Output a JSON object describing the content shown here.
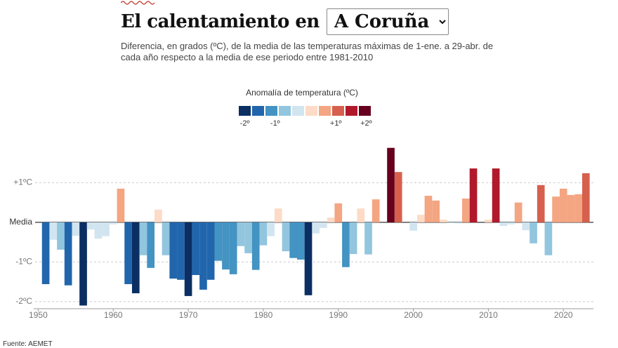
{
  "chart_data": {
    "type": "bar",
    "title": "El calentamiento en",
    "location": "A Coruña",
    "subtitle": "Diferencia, en grados (ºC), de la media de las temperaturas máximas de 1-ene. a 29-abr. de cada año respecto a la media de ese periodo entre 1981-2010",
    "source": "Fuente: AEMET",
    "legend": {
      "title": "Anomalía de temperatura (ºC)",
      "colors": [
        "#0b2f63",
        "#2166ac",
        "#4393c3",
        "#92c5de",
        "#d1e5f0",
        "#fddbc7",
        "#f4a582",
        "#d6604d",
        "#b2182b",
        "#67001f"
      ],
      "clim": [
        -2.2,
        2.2
      ],
      "ticks": [
        {
          "value": -2,
          "label": "-2º"
        },
        {
          "value": -1,
          "label": "-1º"
        },
        {
          "value": 1,
          "label": "+1º"
        },
        {
          "value": 2,
          "label": "+2º"
        }
      ]
    },
    "x": [
      1951,
      1952,
      1953,
      1954,
      1955,
      1956,
      1957,
      1958,
      1959,
      1960,
      1961,
      1962,
      1963,
      1964,
      1965,
      1966,
      1967,
      1968,
      1969,
      1970,
      1971,
      1972,
      1973,
      1974,
      1975,
      1976,
      1977,
      1978,
      1979,
      1980,
      1981,
      1982,
      1983,
      1984,
      1985,
      1986,
      1987,
      1988,
      1989,
      1990,
      1991,
      1992,
      1993,
      1994,
      1995,
      1996,
      1997,
      1998,
      1999,
      2000,
      2001,
      2002,
      2003,
      2004,
      2005,
      2006,
      2007,
      2008,
      2009,
      2010,
      2011,
      2012,
      2013,
      2014,
      2015,
      2016,
      2017,
      2018,
      2019,
      2020,
      2021,
      2022,
      2023
    ],
    "values": [
      -1.56,
      -0.44,
      -0.69,
      -1.59,
      -0.34,
      -2.1,
      -0.18,
      -0.41,
      -0.35,
      -0.05,
      0.85,
      -1.56,
      -1.79,
      -0.83,
      -1.15,
      0.32,
      -0.83,
      -1.42,
      -1.45,
      -1.86,
      -1.33,
      -1.7,
      -1.45,
      -0.97,
      -1.19,
      -1.31,
      -0.6,
      -0.78,
      -1.2,
      -0.58,
      -0.35,
      0.35,
      -0.73,
      -0.9,
      -0.94,
      -1.84,
      -0.28,
      -0.14,
      0.12,
      0.48,
      -1.13,
      -0.8,
      0.35,
      -0.81,
      0.58,
      0,
      1.88,
      1.27,
      0,
      -0.21,
      0.19,
      0.67,
      0.55,
      0.07,
      -0.02,
      -0.03,
      0.6,
      1.36,
      0,
      0.07,
      1.36,
      -0.09,
      -0.05,
      0.5,
      -0.2,
      -0.53,
      0.94,
      -0.83,
      0.65,
      0.85,
      0.69,
      0.71,
      1.24
    ],
    "xlim": [
      1949.4,
      2024
    ],
    "xticks": [
      1950,
      1960,
      1970,
      1980,
      1990,
      2000,
      2010,
      2020
    ],
    "ylim": [
      -2.18,
      2.07
    ],
    "yticks": [
      {
        "value": 1,
        "label": "+1ºC"
      },
      {
        "value": 0,
        "label": "Media"
      },
      {
        "value": -1,
        "label": "-1ºC"
      },
      {
        "value": -2,
        "label": "-2ºC"
      }
    ],
    "grid": true
  }
}
